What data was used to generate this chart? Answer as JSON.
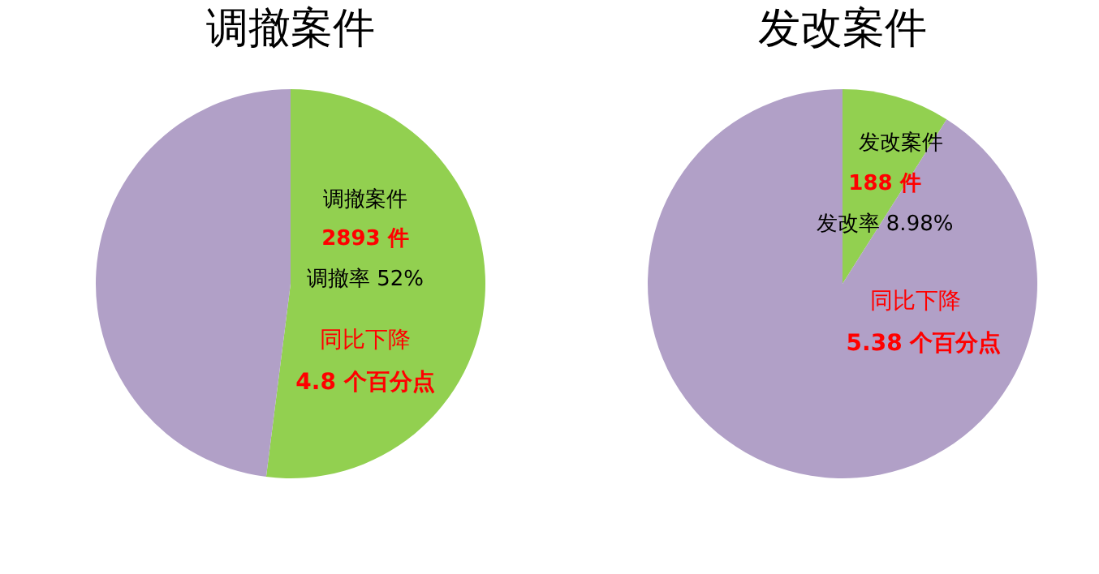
{
  "chart_data": [
    {
      "type": "pie",
      "title": "调撤案件",
      "categories": [
        null,
        null
      ],
      "values": [
        52,
        48
      ],
      "colors": [
        "#92d050",
        "#b1a0c7"
      ],
      "legend": false,
      "annotations": [
        "调撤案件",
        "2893 件",
        "调撤率  52%",
        "同比下降",
        "4.8 个百分点"
      ]
    },
    {
      "type": "pie",
      "title": "发改案件",
      "categories": [
        null,
        null
      ],
      "values": [
        8.98,
        91.02
      ],
      "colors": [
        "#92d050",
        "#b1a0c7"
      ],
      "legend": false,
      "annotations": [
        "发改案件",
        "188 件",
        "发改率  8.98%",
        "同比下降",
        "5.38 个百分点"
      ]
    }
  ]
}
